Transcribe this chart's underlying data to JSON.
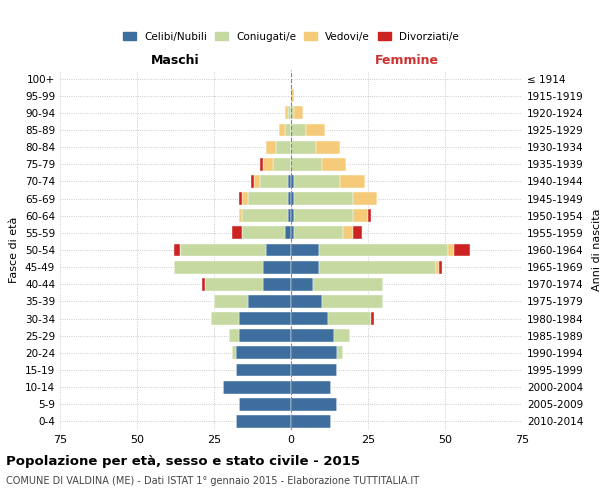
{
  "age_groups": [
    "100+",
    "95-99",
    "90-94",
    "85-89",
    "80-84",
    "75-79",
    "70-74",
    "65-69",
    "60-64",
    "55-59",
    "50-54",
    "45-49",
    "40-44",
    "35-39",
    "30-34",
    "25-29",
    "20-24",
    "15-19",
    "10-14",
    "5-9",
    "0-4"
  ],
  "birth_years": [
    "≤ 1914",
    "1915-1919",
    "1920-1924",
    "1925-1929",
    "1930-1934",
    "1935-1939",
    "1940-1944",
    "1945-1949",
    "1950-1954",
    "1955-1959",
    "1960-1964",
    "1965-1969",
    "1970-1974",
    "1975-1979",
    "1980-1984",
    "1985-1989",
    "1990-1994",
    "1995-1999",
    "2000-2004",
    "2005-2009",
    "2010-2014"
  ],
  "colors": {
    "celibi": "#3d6e9e",
    "coniugati": "#c5d9a0",
    "vedovi": "#f5cb7a",
    "divorziati": "#cc2222"
  },
  "maschi": {
    "celibi": [
      0,
      0,
      0,
      0,
      0,
      0,
      1,
      1,
      1,
      2,
      8,
      9,
      9,
      14,
      17,
      17,
      18,
      18,
      22,
      17,
      18
    ],
    "coniugati": [
      0,
      0,
      1,
      2,
      5,
      6,
      9,
      13,
      15,
      14,
      28,
      29,
      19,
      11,
      9,
      3,
      1,
      0,
      0,
      0,
      0
    ],
    "vedovi": [
      0,
      0,
      1,
      2,
      3,
      3,
      2,
      2,
      1,
      0,
      0,
      0,
      0,
      0,
      0,
      0,
      0,
      0,
      0,
      0,
      0
    ],
    "divorziati": [
      0,
      0,
      0,
      0,
      0,
      1,
      1,
      1,
      0,
      3,
      2,
      0,
      1,
      0,
      0,
      0,
      0,
      0,
      0,
      0,
      0
    ]
  },
  "femmine": {
    "celibi": [
      0,
      0,
      0,
      0,
      0,
      0,
      1,
      1,
      1,
      1,
      9,
      9,
      7,
      10,
      12,
      14,
      15,
      15,
      13,
      15,
      13
    ],
    "coniugati": [
      0,
      0,
      1,
      5,
      8,
      10,
      15,
      19,
      19,
      16,
      42,
      38,
      23,
      20,
      14,
      5,
      2,
      0,
      0,
      0,
      0
    ],
    "vedovi": [
      0,
      1,
      3,
      6,
      8,
      8,
      8,
      8,
      5,
      3,
      2,
      1,
      0,
      0,
      0,
      0,
      0,
      0,
      0,
      0,
      0
    ],
    "divorziati": [
      0,
      0,
      0,
      0,
      0,
      0,
      0,
      0,
      1,
      3,
      5,
      1,
      0,
      0,
      1,
      0,
      0,
      0,
      0,
      0,
      0
    ]
  },
  "title": "Popolazione per età, sesso e stato civile - 2015",
  "subtitle": "COMUNE DI VALDINA (ME) - Dati ISTAT 1° gennaio 2015 - Elaborazione TUTTITALIA.IT",
  "xlabel_left": "Maschi",
  "xlabel_right": "Femmine",
  "ylabel_left": "Fasce di età",
  "ylabel_right": "Anni di nascita",
  "xlim": 75,
  "background_color": "#ffffff",
  "grid_color": "#bbbbbb",
  "legend_labels": [
    "Celibi/Nubili",
    "Coniugati/e",
    "Vedovi/e",
    "Divorziati/e"
  ]
}
